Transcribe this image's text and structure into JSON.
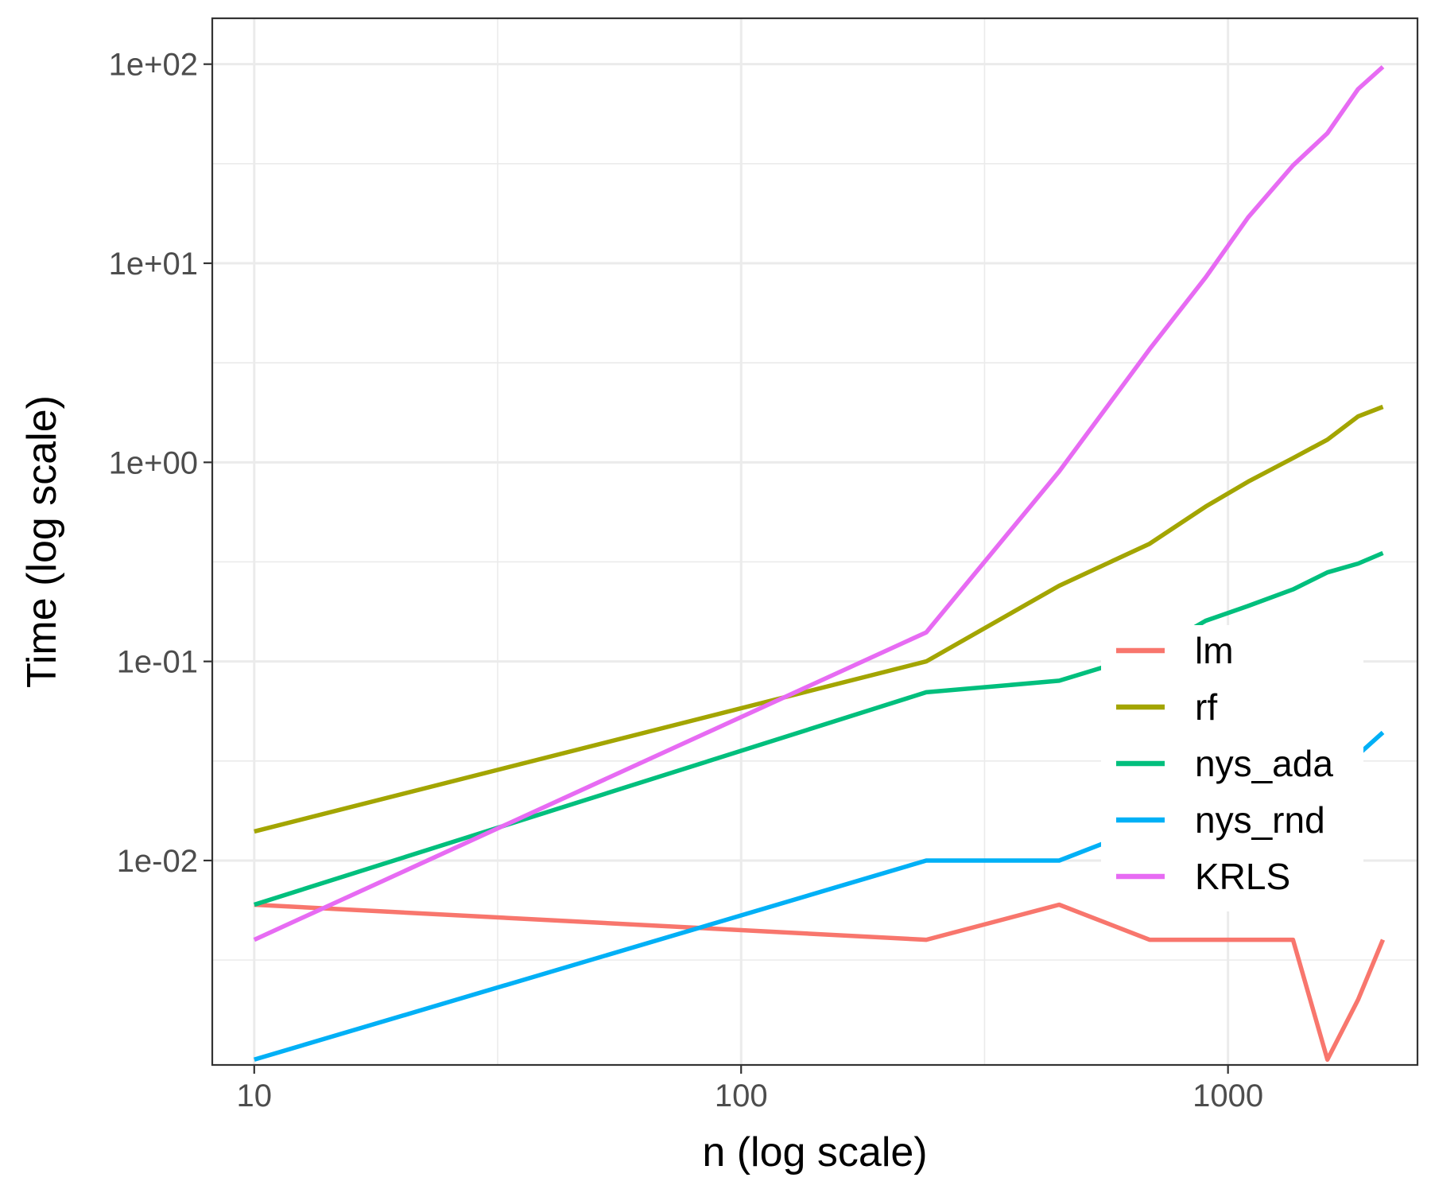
{
  "chart_data": {
    "type": "line",
    "title": "",
    "xlabel": "n (log scale)",
    "ylabel": "Time (log scale)",
    "xscale": "log",
    "yscale": "log",
    "xlim": [
      8.2,
      2450
    ],
    "ylim": [
      0.00094,
      170
    ],
    "grid": true,
    "legend_position": "bottom-right",
    "x_ticks": [
      {
        "value": 10,
        "label": "10"
      },
      {
        "value": 100,
        "label": "100"
      },
      {
        "value": 1000,
        "label": "1000"
      }
    ],
    "y_ticks": [
      {
        "value": 0.01,
        "label": "1e-02"
      },
      {
        "value": 0.1,
        "label": "1e-01"
      },
      {
        "value": 1,
        "label": "1e+00"
      },
      {
        "value": 10,
        "label": "1e+01"
      },
      {
        "value": 100,
        "label": "1e+02"
      }
    ],
    "series": [
      {
        "name": "lm",
        "color": "#F8766D",
        "x": [
          10,
          240,
          450,
          690,
          1360,
          1600,
          1850,
          2080
        ],
        "y": [
          0.006,
          0.004,
          0.006,
          0.004,
          0.004,
          0.001,
          0.002,
          0.004
        ]
      },
      {
        "name": "rf",
        "color": "#A3A500",
        "x": [
          10,
          240,
          450,
          690,
          900,
          1100,
          1360,
          1600,
          1850,
          2080
        ],
        "y": [
          0.014,
          0.1,
          0.24,
          0.39,
          0.6,
          0.8,
          1.05,
          1.3,
          1.7,
          1.9
        ]
      },
      {
        "name": "nys_ada",
        "color": "#00BF7D",
        "x": [
          10,
          240,
          450,
          690,
          900,
          1100,
          1360,
          1600,
          1850,
          2080
        ],
        "y": [
          0.006,
          0.07,
          0.08,
          0.11,
          0.16,
          0.19,
          0.23,
          0.28,
          0.31,
          0.35
        ]
      },
      {
        "name": "nys_rnd",
        "color": "#00B0F6",
        "x": [
          10,
          240,
          450,
          690,
          900,
          1100,
          1360,
          1600,
          1850,
          2080
        ],
        "y": [
          0.001,
          0.01,
          0.01,
          0.015,
          0.014,
          0.02,
          0.03,
          0.033,
          0.034,
          0.044
        ]
      },
      {
        "name": "KRLS",
        "color": "#E76BF3",
        "x": [
          10,
          240,
          450,
          690,
          900,
          1100,
          1360,
          1600,
          1850,
          2080
        ],
        "y": [
          0.004,
          0.14,
          0.9,
          3.7,
          8.5,
          17,
          31,
          45,
          75,
          97
        ]
      }
    ]
  }
}
